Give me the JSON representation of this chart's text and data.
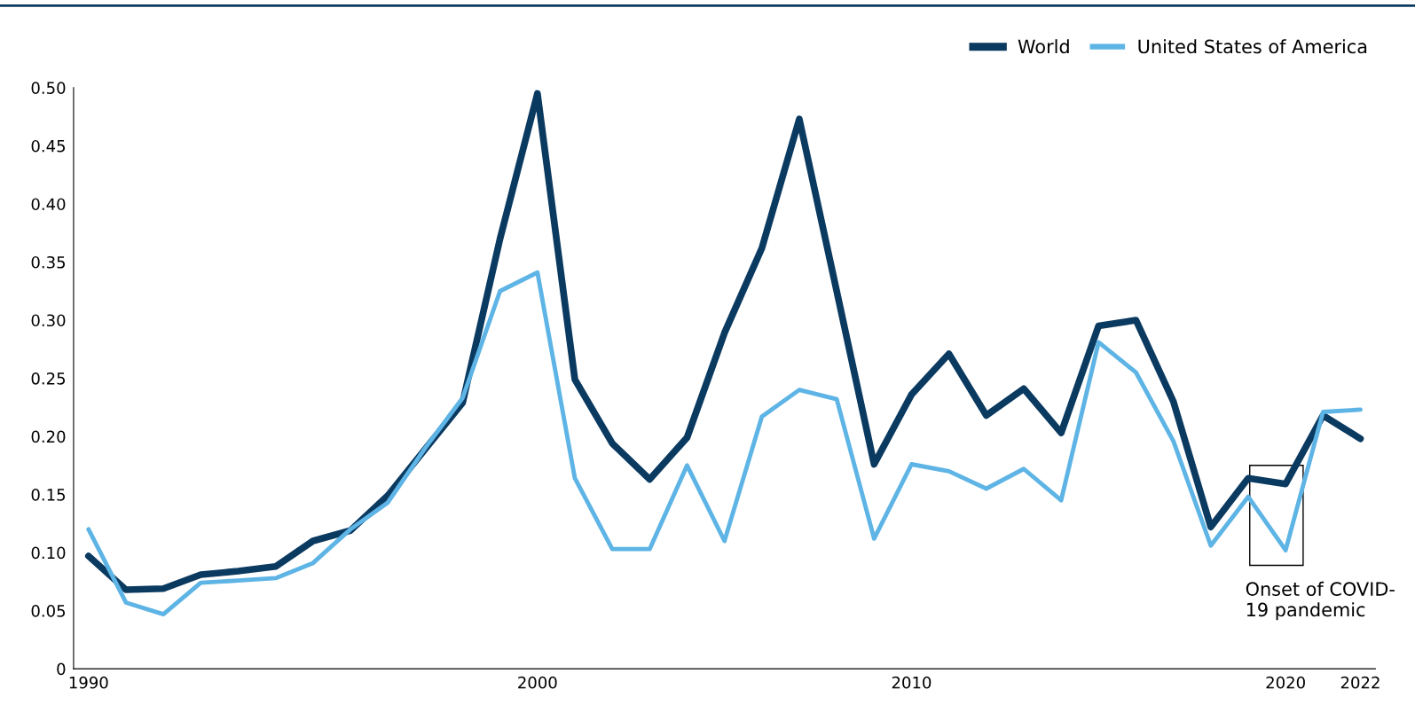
{
  "chart_data": {
    "type": "line",
    "categories": [
      "1990",
      null,
      null,
      null,
      null,
      null,
      null,
      null,
      null,
      null,
      null,
      null,
      "2000",
      null,
      null,
      null,
      null,
      null,
      null,
      null,
      null,
      null,
      "2010",
      null,
      null,
      null,
      null,
      null,
      null,
      null,
      null,
      null,
      "2020",
      null,
      "2022"
    ],
    "series": [
      {
        "name": "World",
        "color": "#0b3a61",
        "values": [
          0.097,
          0.068,
          0.069,
          0.081,
          0.084,
          0.088,
          0.11,
          0.119,
          0.149,
          0.189,
          0.229,
          0.37,
          0.495,
          0.249,
          0.194,
          0.163,
          0.199,
          0.289,
          0.362,
          0.473,
          0.325,
          0.176,
          0.236,
          0.271,
          0.218,
          0.241,
          0.203,
          0.295,
          0.3,
          0.23,
          0.122,
          0.164,
          0.159,
          0.218,
          0.198
        ]
      },
      {
        "name": "United States of America",
        "color": "#5db4e5",
        "values": [
          0.12,
          0.057,
          0.047,
          0.074,
          0.076,
          0.078,
          0.091,
          0.12,
          0.143,
          0.19,
          0.233,
          0.325,
          0.341,
          0.164,
          0.103,
          0.103,
          0.175,
          0.11,
          0.217,
          0.24,
          0.232,
          0.112,
          0.176,
          0.17,
          0.155,
          0.172,
          0.145,
          0.281,
          0.255,
          0.196,
          0.106,
          0.148,
          0.102,
          0.221,
          0.223
        ]
      }
    ],
    "ylim": [
      0,
      0.5
    ],
    "yticks": [
      {
        "value": 0,
        "label": "0"
      },
      {
        "value": 0.05,
        "label": "0.05"
      },
      {
        "value": 0.1,
        "label": "0.10"
      },
      {
        "value": 0.15,
        "label": "0.15"
      },
      {
        "value": 0.2,
        "label": "0.20"
      },
      {
        "value": 0.25,
        "label": "0.25"
      },
      {
        "value": 0.3,
        "label": "0.30"
      },
      {
        "value": 0.35,
        "label": "0.35"
      },
      {
        "value": 0.4,
        "label": "0.40"
      },
      {
        "value": 0.45,
        "label": "0.45"
      },
      {
        "value": 0.5,
        "label": "0.50"
      }
    ],
    "annotations": [
      "Onset of COVID-\n19 pandemic"
    ],
    "grid": false,
    "legend": "top right",
    "marker": "none",
    "line_style": "solid"
  }
}
